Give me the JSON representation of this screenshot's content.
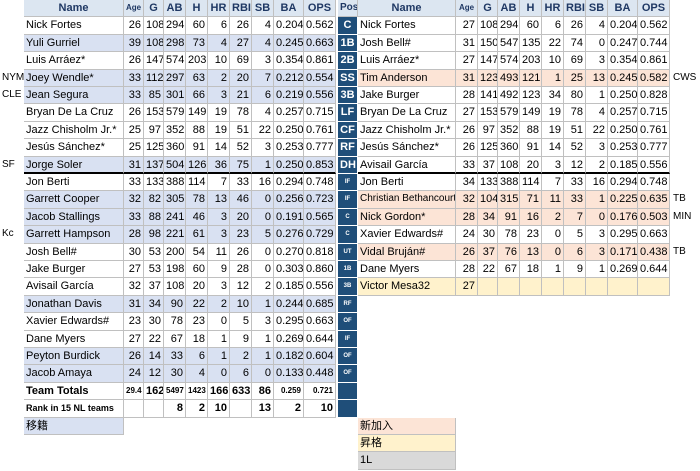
{
  "left_table": {
    "headers": [
      "Name",
      "Age",
      "G",
      "AB",
      "H",
      "HR",
      "RBI",
      "SB",
      "BA",
      "OPS"
    ],
    "rows": [
      {
        "cells": [
          "Nick Fortes",
          "26",
          "108",
          "294",
          "60",
          "6",
          "26",
          "4",
          "0.204",
          "0.562"
        ]
      },
      {
        "cells": [
          "Yuli Gurriel",
          "39",
          "108",
          "298",
          "73",
          "4",
          "27",
          "4",
          "0.245",
          "0.663"
        ],
        "color": "#d9e1f2"
      },
      {
        "cells": [
          "Luis Arráez*",
          "26",
          "147",
          "574",
          "203",
          "10",
          "69",
          "3",
          "0.354",
          "0.861"
        ]
      },
      {
        "cells": [
          "Joey Wendle*",
          "33",
          "112",
          "297",
          "63",
          "2",
          "20",
          "7",
          "0.212",
          "0.554"
        ],
        "color": "#d9e1f2",
        "note": "NYM"
      },
      {
        "cells": [
          "Jean Segura",
          "33",
          "85",
          "301",
          "66",
          "3",
          "21",
          "6",
          "0.219",
          "0.556"
        ],
        "color": "#d9e1f2",
        "note": "CLE"
      },
      {
        "cells": [
          "Bryan De La Cruz",
          "26",
          "153",
          "579",
          "149",
          "19",
          "78",
          "4",
          "0.257",
          "0.715"
        ]
      },
      {
        "cells": [
          "Jazz Chisholm Jr.*",
          "25",
          "97",
          "352",
          "88",
          "19",
          "51",
          "22",
          "0.250",
          "0.761"
        ]
      },
      {
        "cells": [
          "Jesús Sánchez*",
          "25",
          "125",
          "360",
          "91",
          "14",
          "52",
          "3",
          "0.253",
          "0.777"
        ]
      },
      {
        "cells": [
          "Jorge Soler",
          "31",
          "137",
          "504",
          "126",
          "36",
          "75",
          "1",
          "0.250",
          "0.853"
        ],
        "color": "#d9e1f2",
        "note": "SF"
      },
      {
        "cells": [
          "Jon Berti",
          "33",
          "133",
          "388",
          "114",
          "7",
          "33",
          "16",
          "0.294",
          "0.748"
        ]
      },
      {
        "cells": [
          "Garrett Cooper",
          "32",
          "82",
          "305",
          "78",
          "13",
          "46",
          "0",
          "0.256",
          "0.723"
        ],
        "color": "#d9e1f2"
      },
      {
        "cells": [
          "Jacob Stallings",
          "33",
          "88",
          "241",
          "46",
          "3",
          "20",
          "0",
          "0.191",
          "0.565"
        ],
        "color": "#d9e1f2"
      },
      {
        "cells": [
          "Garrett Hampson",
          "28",
          "98",
          "221",
          "61",
          "3",
          "23",
          "5",
          "0.276",
          "0.729"
        ],
        "color": "#d9e1f2",
        "note": "Kc"
      },
      {
        "cells": [
          "Josh Bell#",
          "30",
          "53",
          "200",
          "54",
          "11",
          "26",
          "0",
          "0.270",
          "0.818"
        ]
      },
      {
        "cells": [
          "Jake Burger",
          "27",
          "53",
          "198",
          "60",
          "9",
          "28",
          "0",
          "0.303",
          "0.860"
        ]
      },
      {
        "cells": [
          "Avisail García",
          "32",
          "37",
          "108",
          "20",
          "3",
          "12",
          "2",
          "0.185",
          "0.556"
        ]
      },
      {
        "cells": [
          "Jonathan Davis",
          "31",
          "34",
          "90",
          "22",
          "2",
          "10",
          "1",
          "0.244",
          "0.685"
        ],
        "color": "#d9e1f2"
      },
      {
        "cells": [
          "Xavier Edwards#",
          "23",
          "30",
          "78",
          "23",
          "0",
          "5",
          "3",
          "0.295",
          "0.663"
        ]
      },
      {
        "cells": [
          "Dane Myers",
          "27",
          "22",
          "67",
          "18",
          "1",
          "9",
          "1",
          "0.269",
          "0.644"
        ]
      },
      {
        "cells": [
          "Peyton Burdick",
          "26",
          "14",
          "33",
          "6",
          "1",
          "2",
          "1",
          "0.182",
          "0.604"
        ],
        "color": "#d9e1f2"
      },
      {
        "cells": [
          "Jacob Amaya",
          "24",
          "12",
          "30",
          "4",
          "0",
          "6",
          "0",
          "0.133",
          "0.448"
        ],
        "color": "#d9e1f2"
      }
    ],
    "totals": [
      "Team Totals",
      "29.4",
      "162",
      "5497",
      "1423",
      "166",
      "633",
      "86",
      "0.259",
      "0.721"
    ],
    "rank": [
      "Rank in 15 NL teams",
      null,
      null,
      "8",
      "2",
      "10",
      null,
      "13",
      "2",
      "10"
    ],
    "footer": "移籍"
  },
  "positions": {
    "header": "Pos",
    "labels": [
      "C",
      "1B",
      "2B",
      "SS",
      "3B",
      "LF",
      "CF",
      "RF",
      "DH",
      "IF",
      "IF",
      "C",
      "C",
      "UT",
      "1B",
      "3B",
      "RF",
      "OF",
      "IF",
      "OF",
      "OF"
    ]
  },
  "right_table": {
    "headers": [
      "Name",
      "Age",
      "G",
      "AB",
      "H",
      "HR",
      "RBI",
      "SB",
      "BA",
      "OPS"
    ],
    "rows": [
      {
        "cells": [
          "Nick Fortes",
          "27",
          "108",
          "294",
          "60",
          "6",
          "26",
          "4",
          "0.204",
          "0.562"
        ]
      },
      {
        "cells": [
          "Josh Bell#",
          "31",
          "150",
          "547",
          "135",
          "22",
          "74",
          "0",
          "0.247",
          "0.744"
        ]
      },
      {
        "cells": [
          "Luis Arráez*",
          "27",
          "147",
          "574",
          "203",
          "10",
          "69",
          "3",
          "0.354",
          "0.861"
        ]
      },
      {
        "cells": [
          "Tim Anderson",
          "31",
          "123",
          "493",
          "121",
          "1",
          "25",
          "13",
          "0.245",
          "0.582"
        ],
        "color": "#fce4d6",
        "note": "CWS"
      },
      {
        "cells": [
          "Jake Burger",
          "28",
          "141",
          "492",
          "123",
          "34",
          "80",
          "1",
          "0.250",
          "0.828"
        ]
      },
      {
        "cells": [
          "Bryan De La Cruz",
          "27",
          "153",
          "579",
          "149",
          "19",
          "78",
          "4",
          "0.257",
          "0.715"
        ]
      },
      {
        "cells": [
          "Jazz Chisholm Jr.*",
          "26",
          "97",
          "352",
          "88",
          "19",
          "51",
          "22",
          "0.250",
          "0.761"
        ]
      },
      {
        "cells": [
          "Jesús Sánchez*",
          "26",
          "125",
          "360",
          "91",
          "14",
          "52",
          "3",
          "0.253",
          "0.777"
        ]
      },
      {
        "cells": [
          "Avisail García",
          "33",
          "37",
          "108",
          "20",
          "3",
          "12",
          "2",
          "0.185",
          "0.556"
        ]
      },
      {
        "cells": [
          "Jon Berti",
          "34",
          "133",
          "388",
          "114",
          "7",
          "33",
          "16",
          "0.294",
          "0.748"
        ]
      },
      {
        "cells": [
          "Christian Bethancourt",
          "32",
          "104",
          "315",
          "71",
          "11",
          "33",
          "1",
          "0.225",
          "0.635"
        ],
        "color": "#fce4d6",
        "note": "TB"
      },
      {
        "cells": [
          "Nick Gordon*",
          "28",
          "34",
          "91",
          "16",
          "2",
          "7",
          "0",
          "0.176",
          "0.503"
        ],
        "color": "#fce4d6",
        "note": "MIN"
      },
      {
        "cells": [
          "Xavier Edwards#",
          "24",
          "30",
          "78",
          "23",
          "0",
          "5",
          "3",
          "0.295",
          "0.663"
        ]
      },
      {
        "cells": [
          "Vidal Bruján#",
          "26",
          "37",
          "76",
          "13",
          "0",
          "6",
          "3",
          "0.171",
          "0.438"
        ],
        "color": "#fce4d6",
        "note": "TB"
      },
      {
        "cells": [
          "Dane Myers",
          "28",
          "22",
          "67",
          "18",
          "1",
          "9",
          "1",
          "0.269",
          "0.644"
        ]
      },
      {
        "cells": [
          "Victor Mesa32",
          "27",
          null,
          null,
          null,
          null,
          null,
          null,
          null,
          null
        ],
        "color": "#fff2cc"
      }
    ]
  },
  "legend": [
    {
      "label": "新加入",
      "color": "#fce4d6"
    },
    {
      "label": "昇格",
      "color": "#fff2cc"
    },
    {
      "label": "1L",
      "color": "#d9d9d9"
    }
  ]
}
